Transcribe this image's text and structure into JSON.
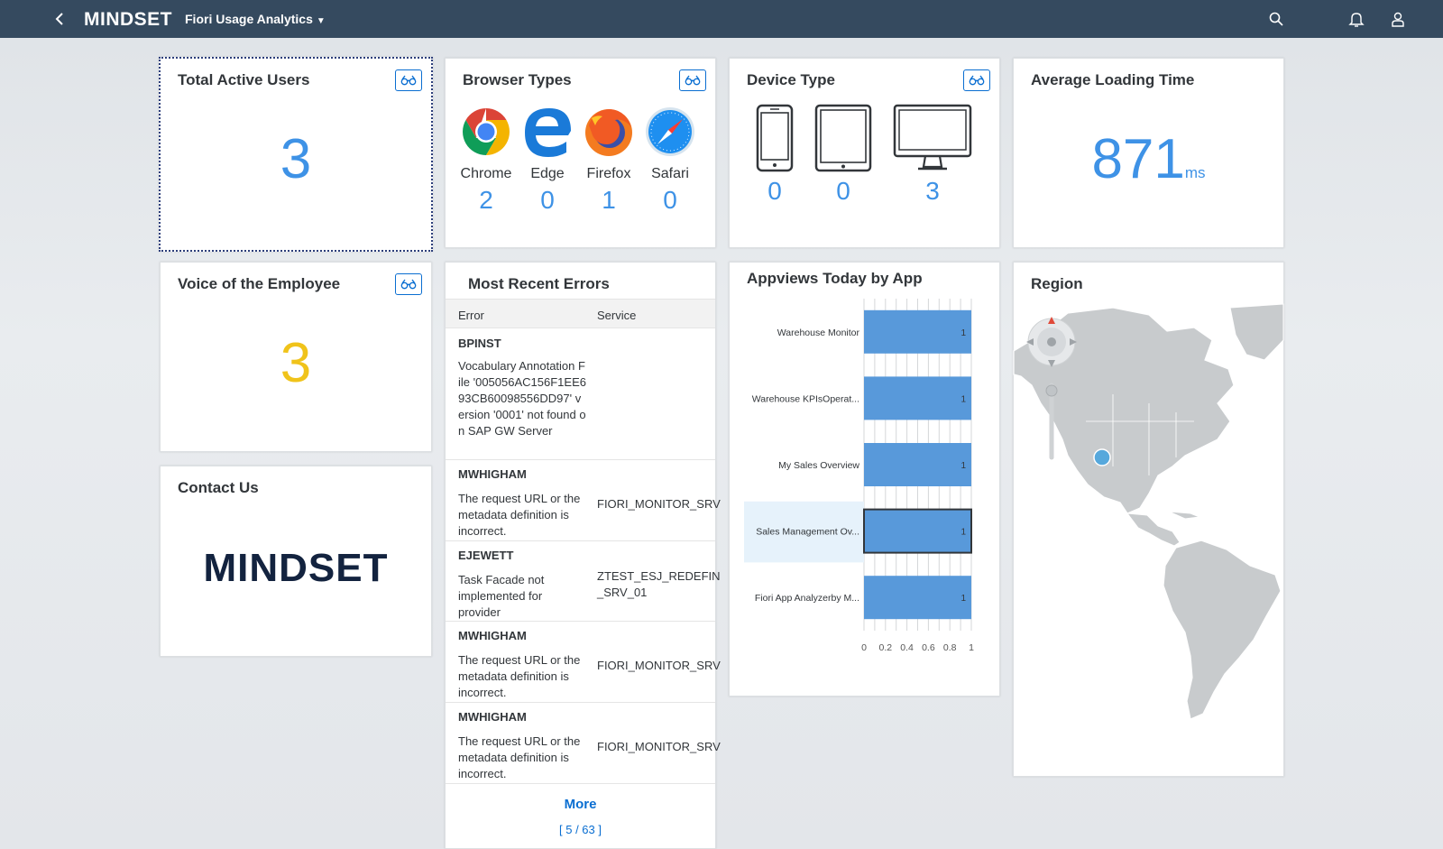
{
  "shell": {
    "brand": "MINDSET",
    "app_title": "Fiori Usage Analytics"
  },
  "tiles": {
    "total_active_users": {
      "title": "Total Active Users",
      "value": "3"
    },
    "browser_types": {
      "title": "Browser Types",
      "items": [
        {
          "label": "Chrome",
          "count": "2",
          "icon": "chrome-icon"
        },
        {
          "label": "Edge",
          "count": "0",
          "icon": "edge-icon"
        },
        {
          "label": "Firefox",
          "count": "1",
          "icon": "firefox-icon"
        },
        {
          "label": "Safari",
          "count": "0",
          "icon": "safari-icon"
        }
      ]
    },
    "device_type": {
      "title": "Device Type",
      "items": [
        {
          "icon": "phone-icon",
          "count": "0"
        },
        {
          "icon": "tablet-icon",
          "count": "0"
        },
        {
          "icon": "desktop-icon",
          "count": "3"
        }
      ]
    },
    "average_loading_time": {
      "title": "Average Loading Time",
      "value": "871",
      "unit": "ms"
    },
    "voice_of_employee": {
      "title": "Voice of the Employee",
      "value": "3"
    },
    "contact_us": {
      "title": "Contact Us",
      "logo_text": "MINDSET"
    },
    "recent_errors": {
      "title": "Most Recent Errors",
      "columns": [
        "Error",
        "Service"
      ],
      "rows": [
        {
          "user": "BPINST",
          "message": "Vocabulary Annotation File '005056AC156F1EE693CB60098556DD97' version '0001' not found on SAP GW Server",
          "service": ""
        },
        {
          "user": "MWHIGHAM",
          "message": "The request URL or the metadata definition is incorrect.",
          "service": "FIORI_MONITOR_SRV"
        },
        {
          "user": "EJEWETT",
          "message": "Task Facade not implemented for provider",
          "service": "ZTEST_ESJ_REDEFIN _SRV_01"
        },
        {
          "user": "MWHIGHAM",
          "message": "The request URL or the metadata definition is incorrect.",
          "service": "FIORI_MONITOR_SRV"
        },
        {
          "user": "MWHIGHAM",
          "message": "The request URL or the metadata definition is incorrect.",
          "service": "FIORI_MONITOR_SRV"
        }
      ],
      "more_label": "More",
      "pager": "[ 5 / 63 ]"
    },
    "appviews": {
      "title": "Appviews Today by App"
    },
    "region": {
      "title": "Region"
    }
  },
  "chart_data": {
    "type": "bar",
    "orientation": "horizontal",
    "categories": [
      "Warehouse Monitor",
      "Warehouse KPIsOperat...",
      "My Sales Overview",
      "Sales Management Ov...",
      "Fiori App Analyzerby M..."
    ],
    "values": [
      1,
      1,
      1,
      1,
      1
    ],
    "selected_category": "Sales Management Ov...",
    "xlim": [
      0,
      1
    ],
    "xticks": [
      "0",
      "0.2",
      "0.4",
      "0.6",
      "0.8",
      "1"
    ],
    "bar_color": "#5899da",
    "grid": true
  },
  "colors": {
    "shell": "#354a5f",
    "kpi_blue": "#3e92e6",
    "kpi_yellow": "#f0c31a"
  }
}
